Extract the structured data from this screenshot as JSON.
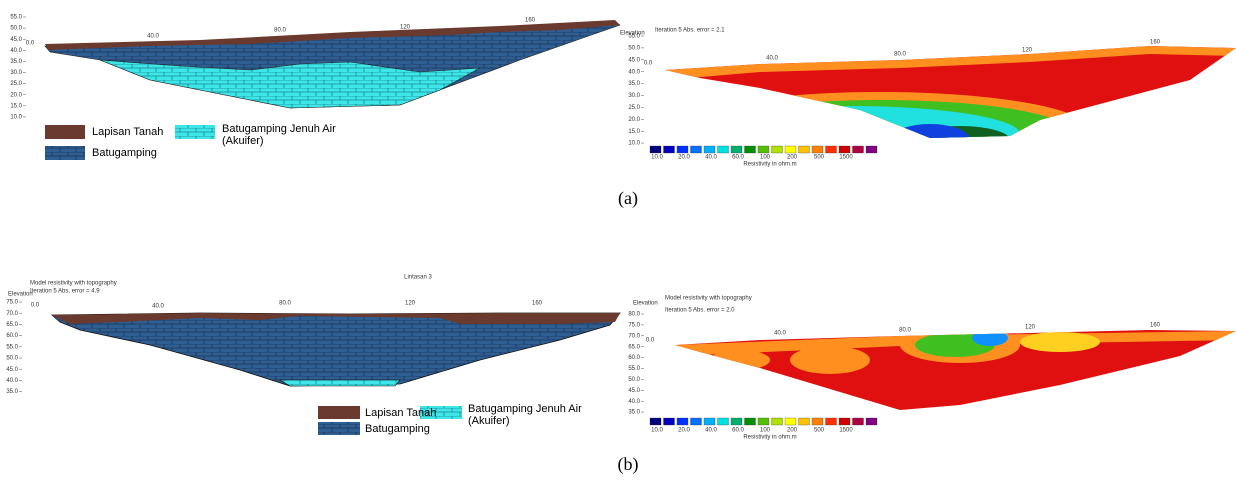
{
  "panels": [
    {
      "label": "(a)",
      "model": {
        "y_ticks": [
          "55.0",
          "50.0",
          "45.0",
          "40.0",
          "35.0",
          "30.0",
          "25.0",
          "20.0",
          "15.0",
          "10.0"
        ],
        "x_ticks": [
          "0.0",
          "40.0",
          "80.0",
          "120",
          "160"
        ],
        "legend": {
          "soil": "Lapisan Tanah",
          "limestone": "Batugamping",
          "aquifer": [
            "Batugamping Jenuh Air",
            "(Akuifer)"
          ]
        }
      },
      "inversion": {
        "axis_title": "Elevation",
        "iteration": "Iteration 5 Abs. error = 2.1",
        "y_ticks": [
          "55.0",
          "50.0",
          "45.0",
          "40.0",
          "35.0",
          "30.0",
          "25.0",
          "20.0",
          "15.0",
          "10.0"
        ],
        "x_ticks": [
          "0.0",
          "40.0",
          "80.0",
          "120",
          "160"
        ],
        "scale_labels": [
          "10.0",
          "20.0",
          "40.0",
          "60.0",
          "100",
          "200",
          "500",
          "1500"
        ],
        "scale_title": "Resistivity in ohm.m"
      }
    },
    {
      "label": "(b)",
      "model": {
        "title": "Lintasan 3",
        "subtitle": "Model resistivity with topography",
        "iteration": "Iteration 5 Abs. error = 4.9",
        "axis_title": "Elevation",
        "y_ticks": [
          "75.0",
          "70.0",
          "65.0",
          "60.0",
          "55.0",
          "50.0",
          "45.0",
          "40.0",
          "35.0"
        ],
        "x_ticks": [
          "0.0",
          "40.0",
          "80.0",
          "120",
          "160"
        ],
        "legend": {
          "soil": "Lapisan Tanah",
          "limestone": "Batugamping",
          "aquifer": [
            "Batugamping Jenuh Air",
            "(Akuifer)"
          ]
        }
      },
      "inversion": {
        "axis_title": "Elevation",
        "subtitle": "Model resistivity with topography",
        "iteration": "Iteration 5 Abs. error = 2.0",
        "y_ticks": [
          "80.0",
          "75.0",
          "70.0",
          "65.0",
          "60.0",
          "55.0",
          "50.0",
          "45.0",
          "40.0",
          "35.0"
        ],
        "x_ticks": [
          "0.0",
          "40.0",
          "80.0",
          "120",
          "160"
        ],
        "scale_labels": [
          "10.0",
          "20.0",
          "40.0",
          "60.0",
          "100",
          "200",
          "500",
          "1500"
        ],
        "scale_title": "Resistivity in ohm.m"
      }
    }
  ]
}
